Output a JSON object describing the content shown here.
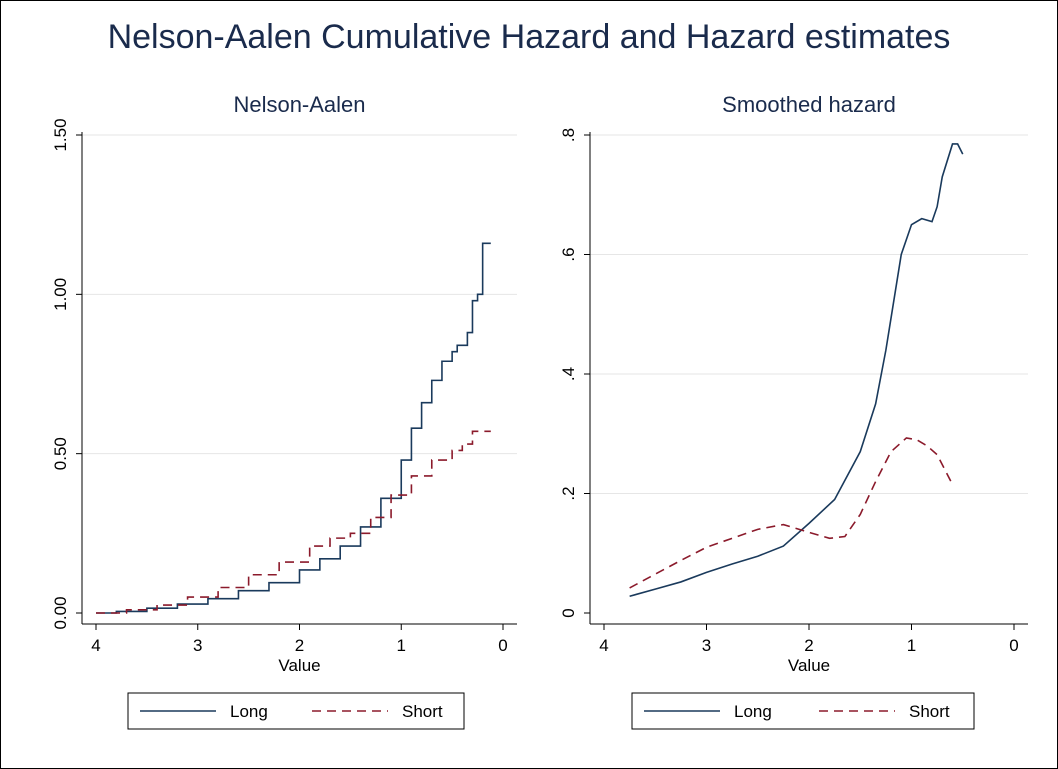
{
  "title": "Nelson-Aalen Cumulative Hazard and Hazard estimates",
  "colors": {
    "long": "#1a3a5c",
    "short": "#8b1a2b",
    "title": "#1a2b4c",
    "grid": "#e6e6e6"
  },
  "chart_data": [
    {
      "type": "line",
      "title": "Nelson-Aalen",
      "xlabel": "Value",
      "ylabel": "",
      "xlim": [
        4,
        0
      ],
      "ylim": [
        0,
        1.5
      ],
      "x_ticks": [
        4,
        3,
        2,
        1,
        0
      ],
      "x_tick_labels": [
        "4",
        "3",
        "2",
        "1",
        "0"
      ],
      "y_ticks": [
        0,
        0.5,
        1.0,
        1.5
      ],
      "y_tick_labels": [
        "0.00",
        "0.50",
        "1.00",
        "1.50"
      ],
      "grid": true,
      "legend": "bottom",
      "series": [
        {
          "name": "Long",
          "style": "solid-step",
          "x": [
            4.0,
            3.8,
            3.5,
            3.2,
            2.9,
            2.6,
            2.3,
            2.0,
            1.8,
            1.6,
            1.4,
            1.2,
            1.0,
            0.9,
            0.8,
            0.7,
            0.6,
            0.5,
            0.45,
            0.4,
            0.35,
            0.3,
            0.25,
            0.2,
            0.12
          ],
          "y": [
            0.0,
            0.005,
            0.015,
            0.028,
            0.045,
            0.07,
            0.095,
            0.135,
            0.17,
            0.21,
            0.27,
            0.36,
            0.48,
            0.58,
            0.66,
            0.73,
            0.79,
            0.82,
            0.84,
            0.84,
            0.88,
            0.98,
            1.0,
            1.16,
            1.16
          ]
        },
        {
          "name": "Short",
          "style": "dashed-step",
          "x": [
            4.0,
            3.7,
            3.4,
            3.1,
            2.8,
            2.5,
            2.2,
            1.9,
            1.7,
            1.5,
            1.3,
            1.1,
            0.9,
            0.7,
            0.5,
            0.4,
            0.3,
            0.2,
            0.12
          ],
          "y": [
            0.0,
            0.01,
            0.025,
            0.05,
            0.08,
            0.12,
            0.16,
            0.21,
            0.235,
            0.25,
            0.3,
            0.37,
            0.43,
            0.48,
            0.51,
            0.53,
            0.57,
            0.57,
            0.57
          ]
        }
      ]
    },
    {
      "type": "line",
      "title": "Smoothed hazard",
      "xlabel": "Value",
      "ylabel": "",
      "xlim": [
        4,
        0
      ],
      "ylim": [
        0,
        0.8
      ],
      "x_ticks": [
        4,
        3,
        2,
        1,
        0
      ],
      "x_tick_labels": [
        "4",
        "3",
        "2",
        "1",
        "0"
      ],
      "y_ticks": [
        0,
        0.2,
        0.4,
        0.6,
        0.8
      ],
      "y_tick_labels": [
        "0",
        ".2",
        ".4",
        ".6",
        ".8"
      ],
      "grid": true,
      "legend": "bottom",
      "series": [
        {
          "name": "Long",
          "style": "solid",
          "x": [
            3.75,
            3.5,
            3.25,
            3.0,
            2.75,
            2.5,
            2.25,
            2.0,
            1.75,
            1.5,
            1.35,
            1.25,
            1.1,
            1.0,
            0.9,
            0.8,
            0.75,
            0.7,
            0.6,
            0.55,
            0.5
          ],
          "y": [
            0.028,
            0.04,
            0.052,
            0.068,
            0.082,
            0.095,
            0.112,
            0.15,
            0.19,
            0.27,
            0.35,
            0.44,
            0.6,
            0.65,
            0.66,
            0.655,
            0.68,
            0.73,
            0.785,
            0.785,
            0.768
          ]
        },
        {
          "name": "Short",
          "style": "dashed",
          "x": [
            3.75,
            3.5,
            3.25,
            3.0,
            2.75,
            2.5,
            2.25,
            2.0,
            1.8,
            1.65,
            1.5,
            1.35,
            1.2,
            1.05,
            0.95,
            0.85,
            0.75,
            0.6
          ],
          "y": [
            0.042,
            0.065,
            0.088,
            0.11,
            0.125,
            0.14,
            0.148,
            0.135,
            0.125,
            0.128,
            0.165,
            0.22,
            0.27,
            0.293,
            0.29,
            0.28,
            0.265,
            0.215
          ]
        }
      ]
    }
  ]
}
